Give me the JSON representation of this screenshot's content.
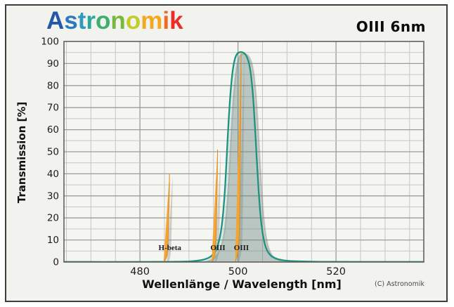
{
  "header": {
    "brand": "Astronomik",
    "title": "OIII 6nm"
  },
  "logo": {
    "text": "Astronomik",
    "letter_colors": [
      "#2558a8",
      "#2c79bd",
      "#2f99c0",
      "#2aa79c",
      "#3fae6e",
      "#77b83e",
      "#c2cd28",
      "#f3a81e",
      "#ef6b23",
      "#ec2c26"
    ]
  },
  "footer": {
    "copyright": "(C) Astronomik"
  },
  "chart_data": {
    "type": "line",
    "title": "OIII 6nm",
    "xlabel": "Wellenlänge / Wavelength [nm]",
    "ylabel": "Transmission [%]",
    "xlim": [
      464.5,
      537.9
    ],
    "ylim": [
      0,
      100
    ],
    "x_ticks": [
      480,
      500,
      520
    ],
    "x_minor_step_nm": 5,
    "y_ticks": [
      0,
      10,
      20,
      30,
      40,
      50,
      60,
      70,
      80,
      90,
      100
    ],
    "y_minor_step": 5,
    "grid": true,
    "series": [
      {
        "name": "OIII 6nm filter transmission",
        "peak_percent": 95,
        "center_nm": 500.6,
        "fwhm_nm": 6,
        "points": [
          [
            464.5,
            0.05
          ],
          [
            480,
            0.05
          ],
          [
            486,
            0.1
          ],
          [
            488,
            0.15
          ],
          [
            490,
            0.3
          ],
          [
            491,
            0.45
          ],
          [
            492,
            0.7
          ],
          [
            493,
            1.1
          ],
          [
            494,
            1.9
          ],
          [
            494.5,
            2.6
          ],
          [
            495,
            3.8
          ],
          [
            495.5,
            5.5
          ],
          [
            496,
            8.5
          ],
          [
            496.5,
            13.5
          ],
          [
            497,
            23
          ],
          [
            497.4,
            35
          ],
          [
            497.8,
            52
          ],
          [
            498.2,
            68
          ],
          [
            498.6,
            80
          ],
          [
            499,
            88
          ],
          [
            499.4,
            92.3
          ],
          [
            499.8,
            94.3
          ],
          [
            500.2,
            95
          ],
          [
            500.6,
            95.2
          ],
          [
            501,
            95
          ],
          [
            501.4,
            94.4
          ],
          [
            501.8,
            93
          ],
          [
            502.2,
            90.5
          ],
          [
            502.6,
            85.5
          ],
          [
            503,
            77
          ],
          [
            503.4,
            64
          ],
          [
            503.8,
            48
          ],
          [
            504.2,
            33
          ],
          [
            504.6,
            21
          ],
          [
            505,
            13.5
          ],
          [
            505.5,
            8
          ],
          [
            506,
            5
          ],
          [
            506.5,
            3.4
          ],
          [
            507,
            2.4
          ],
          [
            508,
            1.4
          ],
          [
            509,
            0.9
          ],
          [
            510,
            0.6
          ],
          [
            512,
            0.35
          ],
          [
            515,
            0.2
          ],
          [
            520,
            0.1
          ],
          [
            537.9,
            0.05
          ]
        ]
      }
    ],
    "emission_lines": [
      {
        "label": "H-beta",
        "wavelength_nm": 486.1,
        "peak_percent": 41
      },
      {
        "label": "OIII",
        "wavelength_nm": 495.9,
        "peak_percent": 52
      },
      {
        "label": "OIII",
        "wavelength_nm": 500.7,
        "peak_percent": 97
      }
    ],
    "colors": {
      "curve_stroke": "#1d937f",
      "curve_fill": "rgba(31,148,128,0.11)",
      "emission_fill": "#f3a637",
      "emission_stroke": "#dc8a1e",
      "shadow": "rgba(130,130,125,0.34)",
      "grid_minor": "#c6c6c3",
      "grid_major": "#9b9b98",
      "plot_bg": "#f5f5f2",
      "frame": "#585855",
      "tick_text": "#1c1c1c",
      "line_label_text": "#1b1b1b"
    }
  }
}
